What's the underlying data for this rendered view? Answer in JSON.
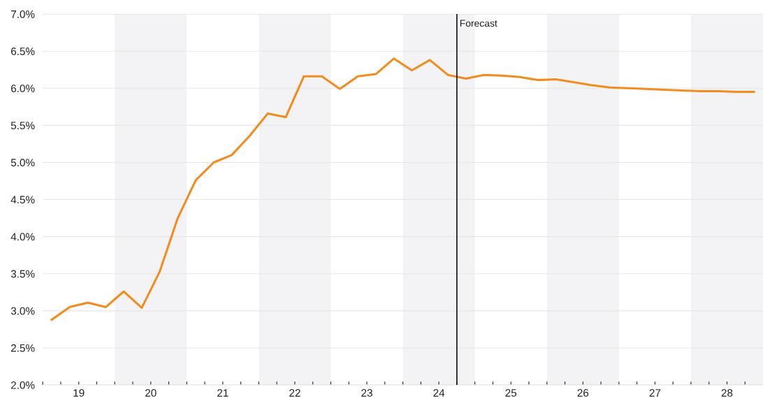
{
  "chart_data": {
    "type": "line",
    "x": [
      18.625,
      18.875,
      19.125,
      19.375,
      19.625,
      19.875,
      20.125,
      20.375,
      20.625,
      20.875,
      21.125,
      21.375,
      21.625,
      21.875,
      22.125,
      22.375,
      22.625,
      22.875,
      23.125,
      23.375,
      23.625,
      23.875,
      24.125,
      24.375,
      24.625,
      24.875,
      25.125,
      25.375,
      25.625,
      25.875,
      26.125,
      26.375,
      26.625,
      26.875,
      27.125,
      27.375,
      27.625,
      27.875,
      28.125,
      28.375
    ],
    "series": [
      {
        "color": "#f28c1e",
        "values": [
          2.88,
          3.05,
          3.11,
          3.05,
          3.26,
          3.04,
          3.53,
          4.25,
          4.76,
          5.0,
          5.1,
          5.36,
          5.66,
          5.61,
          6.16,
          6.16,
          5.99,
          6.16,
          6.19,
          6.4,
          6.24,
          6.38,
          6.18,
          6.13,
          6.18,
          6.17,
          6.15,
          6.11,
          6.12,
          6.08,
          6.04,
          6.01,
          6.0,
          5.99,
          5.98,
          5.97,
          5.96,
          5.96,
          5.95,
          5.95
        ]
      }
    ],
    "xlim": [
      18.5,
      28.5
    ],
    "xticks": [
      {
        "value": 18.5,
        "label": null
      },
      {
        "value": 18.75,
        "label": null
      },
      19,
      {
        "value": 19.25,
        "label": null
      },
      {
        "value": 19.5,
        "label": null
      },
      {
        "value": 19.75,
        "label": null
      },
      20,
      {
        "value": 20.25,
        "label": null
      },
      {
        "value": 20.5,
        "label": null
      },
      {
        "value": 20.75,
        "label": null
      },
      21,
      {
        "value": 21.25,
        "label": null
      },
      {
        "value": 21.5,
        "label": null
      },
      {
        "value": 21.75,
        "label": null
      },
      22,
      {
        "value": 22.25,
        "label": null
      },
      {
        "value": 22.5,
        "label": null
      },
      {
        "value": 22.75,
        "label": null
      },
      23,
      {
        "value": 23.25,
        "label": null
      },
      {
        "value": 23.5,
        "label": null
      },
      {
        "value": 23.75,
        "label": null
      },
      24,
      {
        "value": 24.25,
        "label": null
      },
      {
        "value": 24.5,
        "label": null
      },
      {
        "value": 24.75,
        "label": null
      },
      25,
      {
        "value": 25.25,
        "label": null
      },
      {
        "value": 25.5,
        "label": null
      },
      {
        "value": 25.75,
        "label": null
      },
      26,
      {
        "value": 26.25,
        "label": null
      },
      {
        "value": 26.5,
        "label": null
      },
      {
        "value": 26.75,
        "label": null
      },
      27,
      {
        "value": 27.25,
        "label": null
      },
      {
        "value": 27.5,
        "label": null
      },
      {
        "value": 27.75,
        "label": null
      },
      28,
      {
        "value": 28.25,
        "label": null
      }
    ],
    "ylim": [
      2.0,
      7.0
    ],
    "yticks": [
      {
        "value": 2.0,
        "label": "2.0%"
      },
      {
        "value": 2.5,
        "label": "2.5%"
      },
      {
        "value": 3.0,
        "label": "3.0%"
      },
      {
        "value": 3.5,
        "label": "3.5%"
      },
      {
        "value": 4.0,
        "label": "4.0%"
      },
      {
        "value": 4.5,
        "label": "4.5%"
      },
      {
        "value": 5.0,
        "label": "5.0%"
      },
      {
        "value": 5.5,
        "label": "5.5%"
      },
      {
        "value": 6.0,
        "label": "6.0%"
      },
      {
        "value": 6.5,
        "label": "6.5%"
      },
      {
        "value": 7.0,
        "label": "7.0%"
      }
    ],
    "grid": "y",
    "bands": [
      {
        "axis": "x",
        "from": 19.5,
        "to": 20.5,
        "color": "#f3f3f5"
      },
      {
        "axis": "x",
        "from": 21.5,
        "to": 22.5,
        "color": "#f3f3f5"
      },
      {
        "axis": "x",
        "from": 23.5,
        "to": 24.5,
        "color": "#f3f3f5"
      },
      {
        "axis": "x",
        "from": 25.5,
        "to": 26.5,
        "color": "#f3f3f5"
      },
      {
        "axis": "x",
        "from": 27.5,
        "to": 28.5,
        "color": "#f3f3f5"
      }
    ],
    "ref_lines": [
      {
        "axis": "x",
        "value": 24.25,
        "label": "Forecast",
        "color": "#111111"
      }
    ]
  }
}
